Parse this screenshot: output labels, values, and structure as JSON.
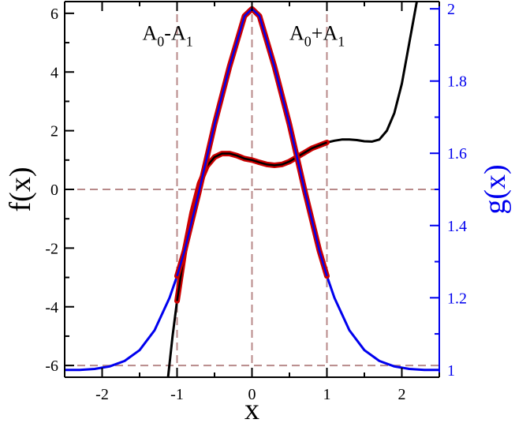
{
  "chart_data": {
    "type": "line",
    "title": "",
    "xlabel": "x",
    "ylabel_left": "f(x)",
    "ylabel_right": "g(x)",
    "xlim": [
      -2.5,
      2.5
    ],
    "ylim_left": [
      -6.4,
      6.4
    ],
    "ylim_right": [
      0.98,
      2.02
    ],
    "x_ticks": [
      -2,
      -1,
      0,
      1,
      2
    ],
    "x_tick_labels": [
      "-2",
      "-1",
      "0",
      "1",
      "2"
    ],
    "y_left_ticks": [
      -6,
      -4,
      -2,
      0,
      2,
      4,
      6
    ],
    "y_left_tick_labels": [
      "-6",
      "-4",
      "-2",
      "0",
      "2",
      "4",
      "6"
    ],
    "y_right_ticks": [
      1,
      1.2,
      1.4,
      1.6,
      1.8,
      2
    ],
    "y_right_tick_labels": [
      "1",
      "1.2",
      "1.4",
      "1.6",
      "1.8",
      "2"
    ],
    "grid_lines": {
      "x": [
        -1,
        0,
        1
      ],
      "y_left": [
        0,
        -6
      ]
    },
    "annotations": [
      {
        "base": "A",
        "sub1": "0",
        "op": "-",
        "sub2": "1",
        "x": -1,
        "y": 5.1
      },
      {
        "base": "A",
        "sub1": "0",
        "op": "+",
        "sub2": "1",
        "x": 0.5,
        "y": 5.1
      }
    ],
    "series": [
      {
        "axis": "left",
        "color": "#000000",
        "style": "solid",
        "x": [
          -1.12,
          -1.06,
          -1.0,
          -0.9,
          -0.8,
          -0.7,
          -0.6,
          -0.5,
          -0.4,
          -0.3,
          -0.2,
          -0.1,
          0.0,
          0.1,
          0.2,
          0.3,
          0.4,
          0.5,
          0.6,
          0.7,
          0.8,
          0.9,
          1.0,
          1.1,
          1.2,
          1.3,
          1.4,
          1.5,
          1.6,
          1.7,
          1.8,
          1.9,
          2.0,
          2.1,
          2.2
        ],
        "values": [
          -6.4,
          -5.0,
          -3.8,
          -2.1,
          -0.8,
          0.2,
          0.8,
          1.1,
          1.22,
          1.22,
          1.15,
          1.05,
          1.0,
          0.92,
          0.85,
          0.82,
          0.85,
          0.95,
          1.1,
          1.25,
          1.4,
          1.5,
          1.6,
          1.66,
          1.7,
          1.7,
          1.68,
          1.64,
          1.63,
          1.7,
          2.0,
          2.6,
          3.6,
          5.0,
          6.4
        ]
      },
      {
        "axis": "left",
        "color": "#cc0000",
        "style": "highlight",
        "x": [
          -1.0,
          -0.9,
          -0.8,
          -0.7,
          -0.6,
          -0.5,
          -0.4,
          -0.3,
          -0.2,
          -0.1,
          0.0,
          0.1,
          0.2,
          0.3,
          0.4,
          0.5,
          0.6,
          0.7,
          0.8,
          0.9,
          1.0
        ],
        "values": [
          -3.8,
          -2.1,
          -0.8,
          0.2,
          0.8,
          1.1,
          1.22,
          1.22,
          1.15,
          1.05,
          1.0,
          0.92,
          0.85,
          0.82,
          0.85,
          0.95,
          1.1,
          1.25,
          1.4,
          1.5,
          1.6
        ]
      },
      {
        "axis": "right",
        "color": "#0000ee",
        "style": "solid",
        "x": [
          -2.5,
          -2.3,
          -2.1,
          -1.9,
          -1.7,
          -1.5,
          -1.3,
          -1.1,
          -1.0,
          -0.9,
          -0.7,
          -0.5,
          -0.3,
          -0.1,
          0.0,
          0.1,
          0.3,
          0.5,
          0.7,
          0.9,
          1.0,
          1.1,
          1.3,
          1.5,
          1.7,
          1.9,
          2.1,
          2.3,
          2.5
        ],
        "values": [
          1.0,
          1.0,
          1.003,
          1.01,
          1.025,
          1.055,
          1.11,
          1.2,
          1.26,
          1.33,
          1.5,
          1.68,
          1.84,
          1.98,
          2.0,
          1.98,
          1.84,
          1.68,
          1.5,
          1.33,
          1.26,
          1.2,
          1.11,
          1.055,
          1.025,
          1.01,
          1.003,
          1.0,
          1.0
        ]
      },
      {
        "axis": "right",
        "color": "#cc0000",
        "style": "highlight",
        "x": [
          -1.0,
          -0.9,
          -0.7,
          -0.5,
          -0.3,
          -0.1,
          0.0,
          0.1,
          0.3,
          0.5,
          0.7,
          0.9,
          1.0
        ],
        "values": [
          1.26,
          1.33,
          1.5,
          1.68,
          1.84,
          1.98,
          2.0,
          1.98,
          1.84,
          1.68,
          1.5,
          1.33,
          1.26
        ]
      }
    ]
  }
}
